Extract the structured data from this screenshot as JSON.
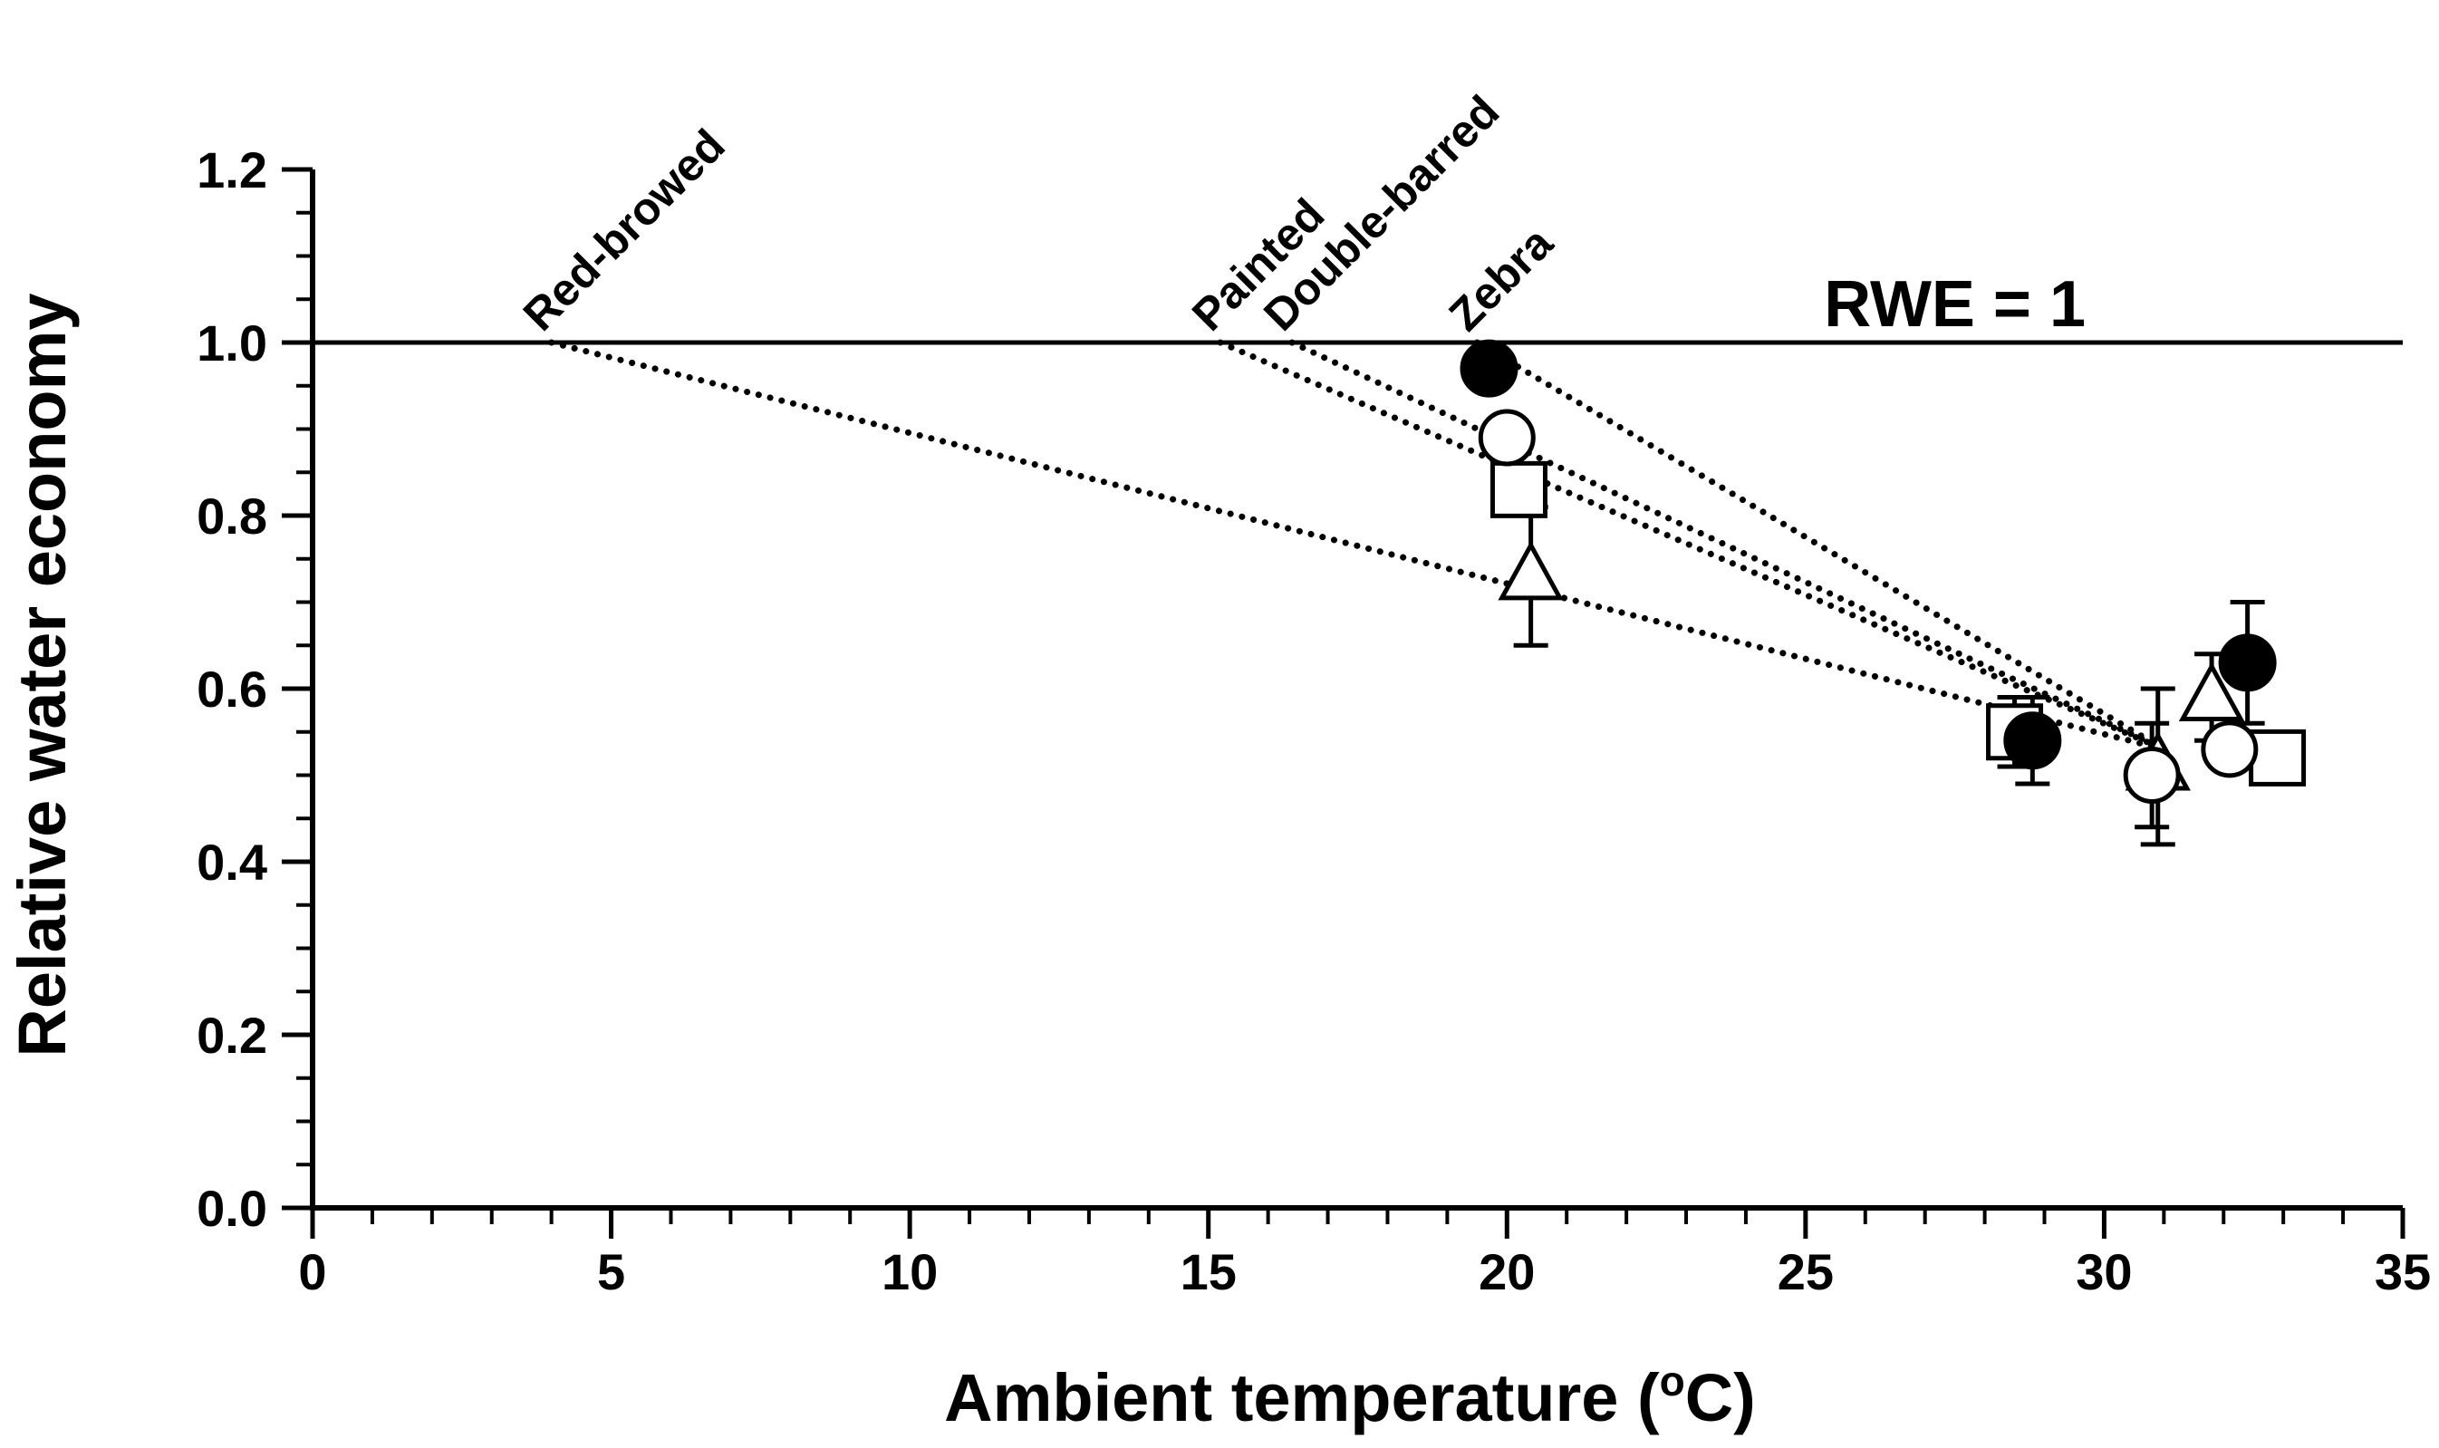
{
  "chart_data": {
    "type": "scatter",
    "title": "",
    "xlabel_main": "Ambient temperature (",
    "xlabel_sup": "o",
    "xlabel_unit": "C)",
    "ylabel": "Relative water economy",
    "xlim": [
      0,
      35
    ],
    "ylim": [
      0,
      1.2
    ],
    "x_ticks": [
      0,
      5,
      10,
      15,
      20,
      25,
      30,
      35
    ],
    "x_tick_labels": [
      "0",
      "5",
      "10",
      "15",
      "20",
      "25",
      "30",
      "35"
    ],
    "y_ticks": [
      0,
      0.2,
      0.4,
      0.6,
      0.8,
      1.0,
      1.2
    ],
    "y_tick_labels": [
      "0.0",
      "0.2",
      "0.4",
      "0.6",
      "0.8",
      "1.0",
      "1.2"
    ],
    "grid": false,
    "reference_line": {
      "y": 1.0,
      "label": "RWE = 1",
      "label_x": 27.5
    },
    "series": [
      {
        "name": "Zebra",
        "marker": "filled-circle",
        "points": [
          {
            "x": 19.7,
            "y": 0.97,
            "err": 0.0
          },
          {
            "x": 28.8,
            "y": 0.54,
            "err": 0.05
          },
          {
            "x": 32.4,
            "y": 0.63,
            "err": 0.07
          }
        ],
        "trend": {
          "x0": 19.5,
          "y0": 1.0,
          "x1": 31.0,
          "y1": 0.53
        },
        "trend_label": "Zebra"
      },
      {
        "name": "Double-barred",
        "marker": "open-circle",
        "points": [
          {
            "x": 20.0,
            "y": 0.89,
            "err": 0.0
          },
          {
            "x": 30.8,
            "y": 0.5,
            "err": 0.06
          },
          {
            "x": 32.1,
            "y": 0.53,
            "err": 0.0
          }
        ],
        "trend": {
          "x0": 16.4,
          "y0": 1.0,
          "x1": 31.0,
          "y1": 0.53
        },
        "trend_label": "Double-barred"
      },
      {
        "name": "Painted",
        "marker": "open-square",
        "points": [
          {
            "x": 20.2,
            "y": 0.83,
            "err": 0.0
          },
          {
            "x": 28.5,
            "y": 0.55,
            "err": 0.04
          },
          {
            "x": 32.9,
            "y": 0.52,
            "err": 0.0
          }
        ],
        "trend": {
          "x0": 15.2,
          "y0": 1.0,
          "x1": 31.0,
          "y1": 0.53
        },
        "trend_label": "Painted"
      },
      {
        "name": "Red-browed",
        "marker": "open-triangle",
        "points": [
          {
            "x": 20.4,
            "y": 0.73,
            "err": 0.08
          },
          {
            "x": 30.9,
            "y": 0.51,
            "err": 0.09
          },
          {
            "x": 31.8,
            "y": 0.59,
            "err": 0.05
          }
        ],
        "trend": {
          "x0": 4.0,
          "y0": 1.0,
          "x1": 31.0,
          "y1": 0.53
        },
        "trend_label": "Red-browed"
      }
    ]
  }
}
